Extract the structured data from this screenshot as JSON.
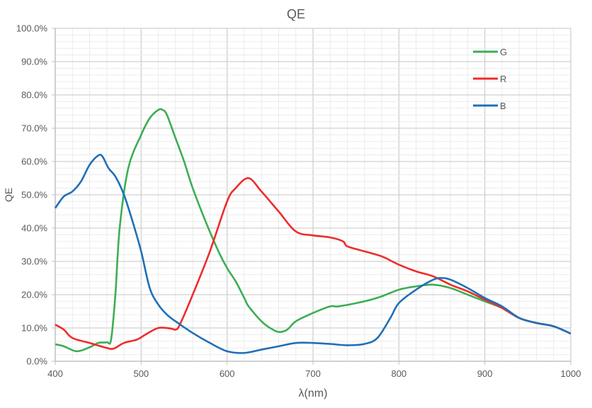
{
  "chart_data": {
    "type": "line",
    "title": "QE",
    "xlabel": "λ(nm)",
    "ylabel": "QE",
    "xlim": [
      400,
      1000
    ],
    "ylim": [
      0,
      100
    ],
    "x_ticks": [
      400,
      500,
      600,
      700,
      800,
      900,
      1000
    ],
    "y_ticks": [
      "0.0%",
      "10.0%",
      "20.0%",
      "30.0%",
      "40.0%",
      "50.0%",
      "60.0%",
      "70.0%",
      "80.0%",
      "90.0%",
      "100.0%"
    ],
    "grid": true,
    "legend_position": "top-right",
    "series": [
      {
        "name": "G",
        "color": "#3cae54",
        "points": [
          [
            400,
            5.1
          ],
          [
            410,
            4.5
          ],
          [
            425,
            3
          ],
          [
            440,
            4.2
          ],
          [
            450,
            5.5
          ],
          [
            460,
            5.7
          ],
          [
            465,
            6.5
          ],
          [
            470,
            20
          ],
          [
            475,
            40
          ],
          [
            485,
            58
          ],
          [
            500,
            68
          ],
          [
            510,
            73
          ],
          [
            520,
            75.5
          ],
          [
            525,
            75.5
          ],
          [
            530,
            74
          ],
          [
            540,
            67
          ],
          [
            550,
            60
          ],
          [
            560,
            52
          ],
          [
            575,
            42
          ],
          [
            590,
            33
          ],
          [
            600,
            28
          ],
          [
            610,
            24
          ],
          [
            620,
            19
          ],
          [
            625,
            16.5
          ],
          [
            640,
            12
          ],
          [
            650,
            10
          ],
          [
            660,
            8.8
          ],
          [
            670,
            9.5
          ],
          [
            680,
            12
          ],
          [
            700,
            14.5
          ],
          [
            720,
            16.5
          ],
          [
            730,
            16.5
          ],
          [
            760,
            18
          ],
          [
            780,
            19.5
          ],
          [
            800,
            21.5
          ],
          [
            820,
            22.5
          ],
          [
            840,
            23
          ],
          [
            860,
            22
          ],
          [
            880,
            20
          ],
          [
            900,
            18
          ],
          [
            920,
            16
          ],
          [
            940,
            13
          ],
          [
            960,
            11.5
          ],
          [
            980,
            10.5
          ],
          [
            1000,
            8.3
          ]
        ]
      },
      {
        "name": "R",
        "color": "#ee2c2c",
        "points": [
          [
            400,
            11
          ],
          [
            410,
            9.5
          ],
          [
            420,
            7
          ],
          [
            440,
            5.5
          ],
          [
            460,
            4
          ],
          [
            468,
            3.8
          ],
          [
            480,
            5.5
          ],
          [
            495,
            6.5
          ],
          [
            505,
            8
          ],
          [
            520,
            10
          ],
          [
            535,
            9.8
          ],
          [
            540,
            9.5
          ],
          [
            545,
            11
          ],
          [
            560,
            20
          ],
          [
            580,
            33
          ],
          [
            600,
            48
          ],
          [
            610,
            52
          ],
          [
            625,
            55
          ],
          [
            640,
            51
          ],
          [
            660,
            45
          ],
          [
            680,
            39
          ],
          [
            700,
            37.8
          ],
          [
            720,
            37.2
          ],
          [
            735,
            36
          ],
          [
            740,
            34.5
          ],
          [
            760,
            33
          ],
          [
            780,
            31.5
          ],
          [
            800,
            29
          ],
          [
            820,
            27
          ],
          [
            840,
            25.5
          ],
          [
            860,
            23
          ],
          [
            880,
            21
          ],
          [
            900,
            18.5
          ],
          [
            920,
            16
          ],
          [
            940,
            13
          ],
          [
            960,
            11.5
          ],
          [
            980,
            10.5
          ],
          [
            1000,
            8.3
          ]
        ]
      },
      {
        "name": "B",
        "color": "#1f6fb8",
        "points": [
          [
            400,
            46
          ],
          [
            410,
            49.5
          ],
          [
            420,
            51
          ],
          [
            430,
            54
          ],
          [
            440,
            59
          ],
          [
            450,
            61.8
          ],
          [
            455,
            61.5
          ],
          [
            462,
            58
          ],
          [
            470,
            55.5
          ],
          [
            480,
            50
          ],
          [
            490,
            42
          ],
          [
            500,
            33
          ],
          [
            510,
            22
          ],
          [
            520,
            17
          ],
          [
            530,
            14
          ],
          [
            540,
            12
          ],
          [
            560,
            8.5
          ],
          [
            580,
            5.5
          ],
          [
            600,
            3
          ],
          [
            620,
            2.5
          ],
          [
            640,
            3.5
          ],
          [
            660,
            4.5
          ],
          [
            680,
            5.5
          ],
          [
            700,
            5.5
          ],
          [
            720,
            5.2
          ],
          [
            740,
            4.8
          ],
          [
            760,
            5.2
          ],
          [
            775,
            7
          ],
          [
            790,
            13
          ],
          [
            800,
            17.5
          ],
          [
            820,
            21.5
          ],
          [
            840,
            24.5
          ],
          [
            850,
            25
          ],
          [
            860,
            24.5
          ],
          [
            880,
            22
          ],
          [
            900,
            19
          ],
          [
            920,
            16.5
          ],
          [
            940,
            13
          ],
          [
            960,
            11.5
          ],
          [
            980,
            10.5
          ],
          [
            1000,
            8.3
          ]
        ]
      }
    ]
  }
}
